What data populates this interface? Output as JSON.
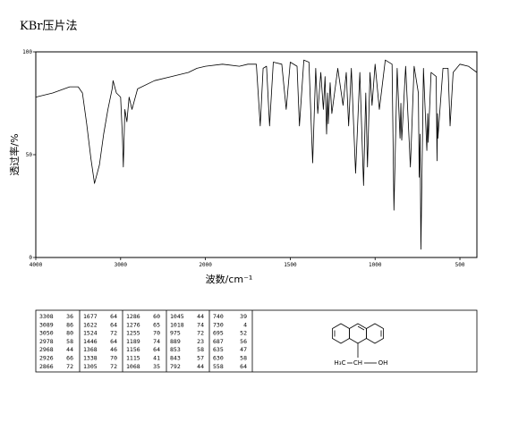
{
  "header": {
    "title": "KBr压片法"
  },
  "chart_data": {
    "type": "line",
    "x_label": "波数/cm⁻¹",
    "y_label": "透过率/%",
    "xlim": [
      4000,
      400
    ],
    "x_scale_break": 2000,
    "xticks": [
      4000,
      3000,
      2000,
      1500,
      1000,
      500
    ],
    "ylim": [
      0,
      100
    ],
    "yticks": [
      0,
      50,
      100
    ],
    "color": "#000000",
    "x": [
      4000,
      3800,
      3600,
      3500,
      3450,
      3400,
      3350,
      3308,
      3250,
      3200,
      3150,
      3100,
      3089,
      3050,
      3000,
      2978,
      2968,
      2950,
      2926,
      2900,
      2866,
      2800,
      2600,
      2400,
      2200,
      2100,
      2000,
      1900,
      1800,
      1750,
      1700,
      1677,
      1660,
      1640,
      1622,
      1600,
      1550,
      1524,
      1500,
      1460,
      1446,
      1420,
      1390,
      1368,
      1350,
      1338,
      1320,
      1305,
      1295,
      1286,
      1280,
      1276,
      1265,
      1255,
      1220,
      1189,
      1170,
      1156,
      1140,
      1115,
      1090,
      1068,
      1055,
      1045,
      1030,
      1018,
      1000,
      975,
      940,
      900,
      889,
      870,
      853,
      848,
      843,
      820,
      792,
      770,
      745,
      740,
      735,
      730,
      715,
      695,
      690,
      687,
      670,
      640,
      635,
      632,
      630,
      600,
      570,
      558,
      540,
      500,
      450,
      400
    ],
    "values": [
      78,
      80,
      83,
      83,
      80,
      65,
      48,
      36,
      45,
      60,
      72,
      82,
      86,
      80,
      78,
      58,
      44,
      72,
      66,
      78,
      72,
      82,
      86,
      88,
      90,
      92,
      93,
      94,
      93,
      94,
      94,
      64,
      92,
      93,
      64,
      95,
      94,
      72,
      95,
      93,
      64,
      96,
      95,
      46,
      92,
      70,
      90,
      72,
      88,
      60,
      80,
      65,
      85,
      70,
      92,
      74,
      90,
      64,
      92,
      41,
      90,
      35,
      80,
      44,
      90,
      74,
      94,
      72,
      96,
      94,
      23,
      92,
      58,
      75,
      57,
      93,
      44,
      93,
      80,
      39,
      60,
      4,
      92,
      52,
      70,
      56,
      90,
      88,
      47,
      70,
      58,
      92,
      92,
      64,
      90,
      94,
      93,
      90
    ]
  },
  "peak_table": {
    "rows": [
      [
        "3308",
        "36",
        "1677",
        "64",
        "1286",
        "60",
        "1045",
        "44",
        "740",
        "39"
      ],
      [
        "3089",
        "86",
        "1622",
        "64",
        "1276",
        "65",
        "1018",
        "74",
        "730",
        "4"
      ],
      [
        "3050",
        "80",
        "1524",
        "72",
        "1255",
        "70",
        "975",
        "72",
        "695",
        "52"
      ],
      [
        "2978",
        "58",
        "1446",
        "64",
        "1189",
        "74",
        "889",
        "23",
        "687",
        "56"
      ],
      [
        "2968",
        "44",
        "1368",
        "46",
        "1156",
        "64",
        "853",
        "58",
        "635",
        "47"
      ],
      [
        "2926",
        "66",
        "1338",
        "70",
        "1115",
        "41",
        "843",
        "57",
        "630",
        "58"
      ],
      [
        "2866",
        "72",
        "1305",
        "72",
        "1068",
        "35",
        "792",
        "44",
        "558",
        "64"
      ]
    ]
  },
  "structure": {
    "labels": [
      "H₃C",
      "CH",
      "OH"
    ]
  }
}
